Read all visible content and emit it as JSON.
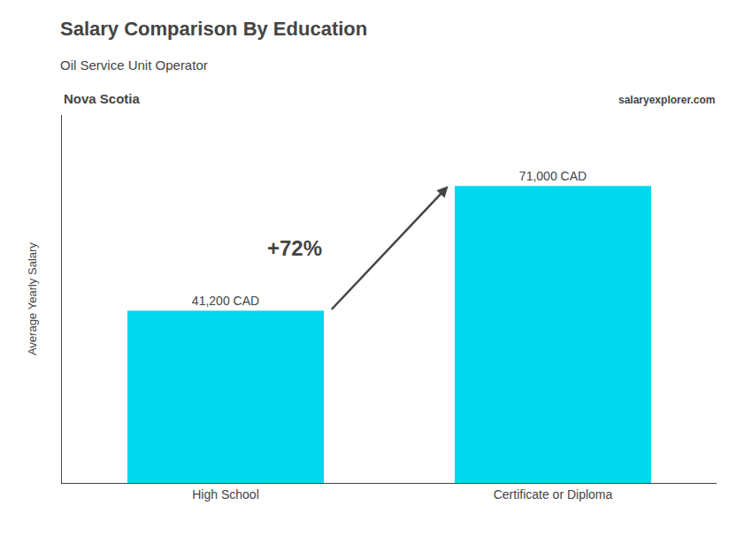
{
  "chart_data": {
    "type": "bar",
    "title": "Salary Comparison By Education",
    "subtitle": "Oil Service Unit Operator",
    "annotations": [
      "Nova Scotia",
      "salaryexplorer.com",
      "+72%"
    ],
    "ylabel": "Average Yearly Salary",
    "categories": [
      "High School",
      "Certificate or Diploma"
    ],
    "values": [
      41200,
      71000
    ],
    "value_labels": [
      "41,200 CAD",
      "71,000 CAD"
    ],
    "data_labels": true,
    "color": "#00d8f0",
    "ylim": [
      0,
      88000
    ],
    "tick_labels": "x",
    "grid": false
  }
}
